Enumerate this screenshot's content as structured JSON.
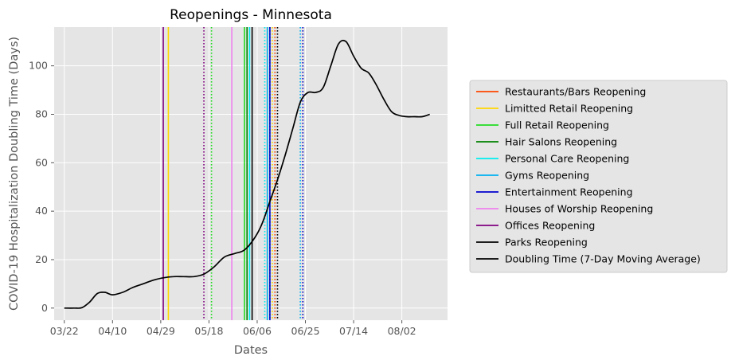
{
  "chart_data": {
    "type": "line",
    "title": "Reopenings - Minnesota",
    "xlabel": "Dates",
    "ylabel": "COVID-19 Hospitalization Doubling Time (Days)",
    "xlim": [
      "2020-03-18",
      "2020-08-20"
    ],
    "ylim": [
      -5,
      116
    ],
    "grid": true,
    "legend_position": "right",
    "x_ticks": [
      "2020-03-22",
      "2020-04-10",
      "2020-04-29",
      "2020-05-18",
      "2020-06-06",
      "2020-06-25",
      "2020-07-14",
      "2020-08-02"
    ],
    "x_tick_labels": [
      "03/22",
      "04/10",
      "04/29",
      "05/18",
      "06/06",
      "06/25",
      "07/14",
      "08/02"
    ],
    "y_ticks": [
      0,
      20,
      40,
      60,
      80,
      100
    ],
    "y_tick_labels": [
      "0",
      "20",
      "40",
      "60",
      "80",
      "100"
    ],
    "reopenings": [
      {
        "name": "Restaurants/Bars Reopening",
        "color": "#ff4500",
        "solid": "2020-06-10",
        "dotted": "2020-06-13"
      },
      {
        "name": "Limitted Retail Reopening",
        "color": "#ffd700",
        "solid": "2020-05-02",
        "dotted": "2020-06-12"
      },
      {
        "name": "Full Retail Reopening",
        "color": "#22dd22",
        "solid": "2020-06-01",
        "dotted": "2020-05-19"
      },
      {
        "name": "Hair Salons Reopening",
        "color": "#008000",
        "solid": "2020-06-02",
        "dotted": "2020-06-11"
      },
      {
        "name": "Personal Care Reopening",
        "color": "#00eeee",
        "solid": "2020-06-03",
        "dotted": "2020-06-09"
      },
      {
        "name": "Gyms Reopening",
        "color": "#00b0f0",
        "solid": "2020-06-10",
        "dotted": "2020-06-23"
      },
      {
        "name": "Entertainment Reopening",
        "color": "#0000cc",
        "solid": "2020-06-11",
        "dotted": "2020-06-24"
      },
      {
        "name": "Houses of Worship Reopening",
        "color": "#ee82ee",
        "solid": "2020-05-27",
        "dotted": null
      },
      {
        "name": "Offices Reopening",
        "color": "#800080",
        "solid": "2020-04-30",
        "dotted": "2020-05-16"
      },
      {
        "name": "Parks Reopening",
        "color": "#000000",
        "solid": "2020-06-04",
        "dotted": "2020-06-14"
      }
    ],
    "series": [
      {
        "name": "Doubling Time (7-Day Moving Average)",
        "color": "#000000",
        "x": [
          "2020-03-22",
          "2020-03-26",
          "2020-03-29",
          "2020-04-01",
          "2020-04-04",
          "2020-04-07",
          "2020-04-10",
          "2020-04-14",
          "2020-04-18",
          "2020-04-22",
          "2020-04-26",
          "2020-04-30",
          "2020-05-04",
          "2020-05-08",
          "2020-05-12",
          "2020-05-16",
          "2020-05-20",
          "2020-05-24",
          "2020-05-28",
          "2020-06-01",
          "2020-06-05",
          "2020-06-08",
          "2020-06-11",
          "2020-06-14",
          "2020-06-17",
          "2020-06-20",
          "2020-06-23",
          "2020-06-26",
          "2020-06-29",
          "2020-07-02",
          "2020-07-05",
          "2020-07-08",
          "2020-07-11",
          "2020-07-14",
          "2020-07-17",
          "2020-07-20",
          "2020-07-23",
          "2020-07-26",
          "2020-07-29",
          "2020-08-01",
          "2020-08-04",
          "2020-08-07",
          "2020-08-10",
          "2020-08-13"
        ],
        "values": [
          0,
          0,
          0.2,
          2.5,
          6,
          6.5,
          5.5,
          6.5,
          8.5,
          10,
          11.5,
          12.5,
          13,
          13,
          13,
          14,
          17,
          21,
          22.5,
          24,
          29,
          35,
          44,
          53,
          63,
          74,
          85,
          89,
          89,
          91,
          100,
          109,
          110,
          104,
          99,
          97,
          92,
          86,
          81,
          79.5,
          79,
          79,
          79,
          80
        ]
      }
    ]
  }
}
